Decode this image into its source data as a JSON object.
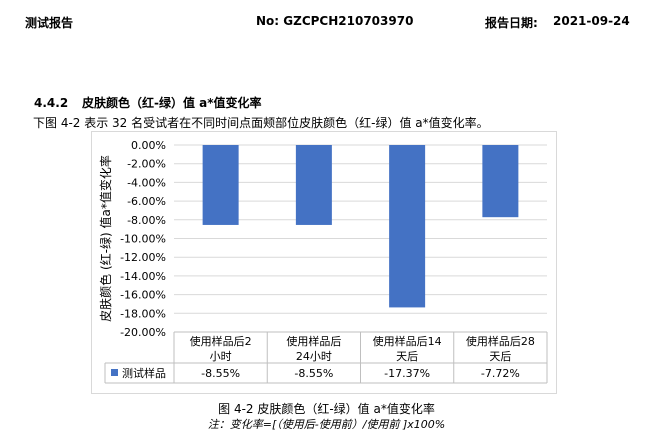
{
  "header": {
    "left": "测试报告",
    "report_no": "No:  GZCPCH210703970",
    "date_label": "报告日期:",
    "date": "2021-09-24"
  },
  "section": {
    "number": "4.4.2",
    "title": "皮肤颜色（红-绿）值 a*值变化率",
    "intro": "下图 4-2 表示 32 名受试者在不同时间点面颊部位皮肤颜色（红-绿）值 a*值变化率。"
  },
  "chart_data": {
    "type": "bar",
    "categories": [
      "使用样品后2小时",
      "使用样品后24小时",
      "使用样品后14天后",
      "使用样品后28天后"
    ],
    "category_lines": [
      [
        "使用样品后2",
        "小时"
      ],
      [
        "使用样品后",
        "24小时"
      ],
      [
        "使用样品后14",
        "天后"
      ],
      [
        "使用样品后28",
        "天后"
      ]
    ],
    "series": [
      {
        "name": "测试样品",
        "values": [
          -8.55,
          -8.55,
          -17.37,
          -7.72
        ],
        "labels": [
          "-8.55%",
          "-8.55%",
          "-17.37%",
          "-7.72%"
        ],
        "color": "#4472C4"
      }
    ],
    "ylabel": "皮肤颜色 (红-绿) 值a*值变化率",
    "ylim": [
      -20,
      0
    ],
    "ytick_step": 2,
    "yticks": [
      "0.00%",
      "-2.00%",
      "-4.00%",
      "-6.00%",
      "-8.00%",
      "-10.00%",
      "-12.00%",
      "-14.00%",
      "-16.00%",
      "-18.00%",
      "-20.00%"
    ],
    "grid": true,
    "legend": "data-table"
  },
  "figure": {
    "caption": "图 4-2 皮肤颜色（红-绿）值 a*值变化率",
    "note": "注：变化率=[（使用后-使用前）/使用前 ]x100%"
  }
}
